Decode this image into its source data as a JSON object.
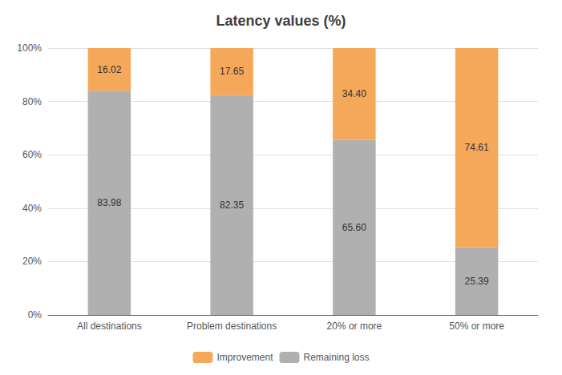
{
  "chart_data": {
    "type": "bar",
    "title": "Latency values (%)",
    "categories": [
      "All destinations",
      "Problem destinations",
      "20% or more",
      "50% or more"
    ],
    "series": [
      {
        "name": "Remaining loss",
        "color": "#b0b0b0",
        "values": [
          83.98,
          82.35,
          65.6,
          25.39
        ],
        "value_labels": [
          "83.98",
          "82.35",
          "65.60",
          "25.39"
        ]
      },
      {
        "name": "Improvement",
        "color": "#f5a85a",
        "values": [
          16.02,
          17.65,
          34.4,
          74.61
        ],
        "value_labels": [
          "16.02",
          "17.65",
          "34.40",
          "74.61"
        ]
      }
    ],
    "stacked": true,
    "data_labels": true,
    "ylim": [
      0,
      100
    ],
    "yticks": [
      {
        "value": 0,
        "label": "0%"
      },
      {
        "value": 20,
        "label": "20%"
      },
      {
        "value": 40,
        "label": "40%"
      },
      {
        "value": 60,
        "label": "60%"
      },
      {
        "value": 80,
        "label": "80%"
      },
      {
        "value": 100,
        "label": "100%"
      }
    ],
    "grid": true,
    "legend": "bottom"
  }
}
